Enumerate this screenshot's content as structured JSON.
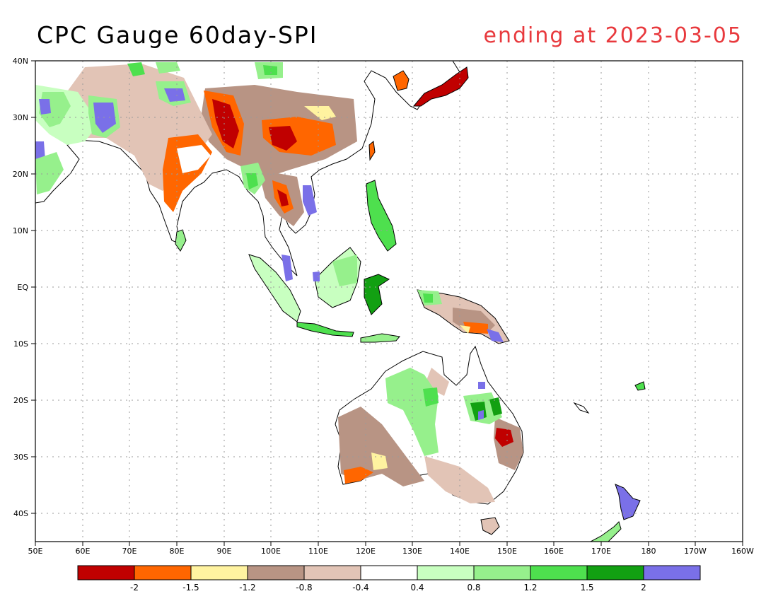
{
  "title": "CPC Gauge 60day-SPI",
  "subtitle": "ending at 2023-03-05",
  "colors": {
    "title": "#000000",
    "subtitle": "#e8393d",
    "land": "#ffffff",
    "coast": "#000000",
    "grid": "#9a9a9a"
  },
  "map": {
    "lon_labels": [
      "50E",
      "60E",
      "70E",
      "80E",
      "90E",
      "100E",
      "110E",
      "120E",
      "130E",
      "140E",
      "150E",
      "160E",
      "170E",
      "180",
      "170W",
      "160W"
    ],
    "lat_labels": [
      "40N",
      "30N",
      "20N",
      "10N",
      "EQ",
      "10S",
      "20S",
      "30S",
      "40S"
    ]
  },
  "colorbar": {
    "colors": [
      "#c00000",
      "#ff6600",
      "#fff3a0",
      "#b89484",
      "#e2c4b6",
      "#ffffff",
      "#c8ffc0",
      "#96f08c",
      "#4ee04e",
      "#12a012",
      "#7a70e8"
    ],
    "labels": [
      "-2",
      "-1.5",
      "-1.2",
      "-0.8",
      "-0.4",
      "0.4",
      "0.8",
      "1.2",
      "1.5",
      "2"
    ]
  }
}
